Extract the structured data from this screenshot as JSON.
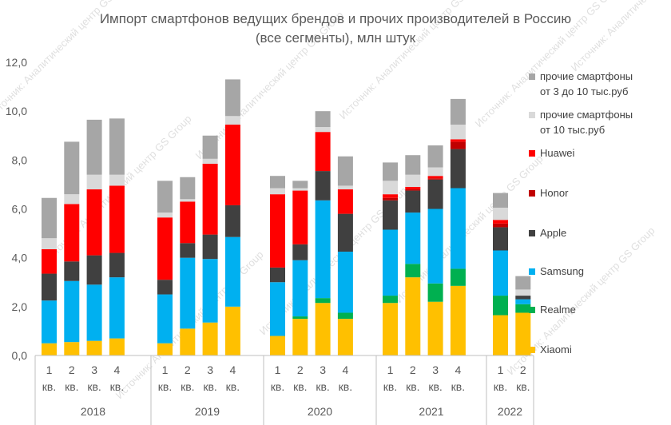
{
  "chart_data": {
    "type": "bar",
    "stacked": true,
    "title": "Импорт смартфонов ведущих брендов и прочих производителей в Россию",
    "subtitle": "(все сегменты), млн штук",
    "xlabel": "",
    "ylabel": "",
    "ylim": [
      0,
      12
    ],
    "yticks": [
      "0,0",
      "2,0",
      "4,0",
      "6,0",
      "8,0",
      "10,0",
      "12,0"
    ],
    "grid": false,
    "legend_position": "right",
    "years": [
      "2018",
      "2019",
      "2020",
      "2021",
      "2022"
    ],
    "quarter_numbers": [
      [
        "1",
        "2",
        "3",
        "4"
      ],
      [
        "1",
        "2",
        "3",
        "4"
      ],
      [
        "1",
        "2",
        "3",
        "4"
      ],
      [
        "1",
        "2",
        "3",
        "4"
      ],
      [
        "1",
        "2"
      ]
    ],
    "quarter_suffix": "кв.",
    "series": [
      {
        "name": "Xiaomi",
        "color": "#FFC000",
        "values": [
          0.5,
          0.55,
          0.6,
          0.7,
          0.5,
          1.1,
          1.35,
          2.0,
          0.8,
          1.5,
          2.15,
          1.5,
          2.15,
          3.2,
          2.2,
          2.85,
          1.65,
          1.75
        ]
      },
      {
        "name": "Realme",
        "color": "#00B050",
        "values": [
          0,
          0,
          0,
          0,
          0,
          0,
          0,
          0,
          0,
          0.1,
          0.2,
          0.25,
          0.3,
          0.55,
          0.75,
          0.7,
          0.8,
          0.35
        ]
      },
      {
        "name": "Samsung",
        "color": "#00B0F0",
        "values": [
          1.75,
          2.5,
          2.3,
          2.5,
          2.0,
          2.9,
          2.6,
          2.85,
          2.2,
          2.3,
          4.0,
          2.5,
          2.7,
          2.1,
          3.05,
          3.3,
          1.85,
          0.2
        ]
      },
      {
        "name": "Apple",
        "color": "#404040",
        "values": [
          1.1,
          0.8,
          1.2,
          1.0,
          0.6,
          0.6,
          1.0,
          1.3,
          0.6,
          0.65,
          1.2,
          1.55,
          1.2,
          0.9,
          1.2,
          1.6,
          0.95,
          0.15
        ]
      },
      {
        "name": "Honor",
        "color": "#C00000",
        "values": [
          0,
          0,
          0,
          0,
          0,
          0,
          0,
          0,
          0,
          0,
          0,
          0,
          0.1,
          0.05,
          0.05,
          0.3,
          0.15,
          0
        ]
      },
      {
        "name": "Huawei",
        "color": "#FF0000",
        "values": [
          1.0,
          2.35,
          2.7,
          2.75,
          2.55,
          1.7,
          2.9,
          3.3,
          3.0,
          2.2,
          1.6,
          1.0,
          0.15,
          0.1,
          0.1,
          0.1,
          0.15,
          0
        ]
      },
      {
        "name": "прочие смартфоны от 10 тыс.руб",
        "color": "#D9D9D9",
        "values": [
          0.45,
          0.4,
          0.6,
          0.45,
          0.2,
          0.1,
          0.2,
          0.35,
          0.25,
          0.1,
          0.2,
          0.15,
          0.55,
          0.5,
          0.35,
          0.6,
          0.5,
          0.25
        ]
      },
      {
        "name": "прочие смартфоны от 3 до 10 тыс.руб",
        "color": "#A6A6A6",
        "values": [
          1.65,
          2.15,
          2.25,
          2.3,
          1.3,
          0.9,
          0.95,
          1.5,
          0.5,
          0.3,
          0.65,
          1.2,
          0.75,
          0.8,
          0.9,
          1.05,
          0.6,
          0.55
        ]
      }
    ]
  },
  "legend": [
    {
      "line1": "прочие смартфоны",
      "line2": "от 3 до 10 тыс.руб",
      "color": "#A6A6A6"
    },
    {
      "line1": "прочие смартфоны",
      "line2": "от 10 тыс.руб",
      "color": "#D9D9D9"
    },
    {
      "line1": "Huawei",
      "line2": "",
      "color": "#FF0000"
    },
    {
      "line1": "Honor",
      "line2": "",
      "color": "#C00000"
    },
    {
      "line1": "Apple",
      "line2": "",
      "color": "#404040"
    },
    {
      "line1": "Samsung",
      "line2": "",
      "color": "#00B0F0"
    },
    {
      "line1": "Realme",
      "line2": "",
      "color": "#00B050"
    },
    {
      "line1": "Xiaomi",
      "line2": "",
      "color": "#FFC000"
    }
  ],
  "watermark": "Источник: Аналитический центр GS Group"
}
